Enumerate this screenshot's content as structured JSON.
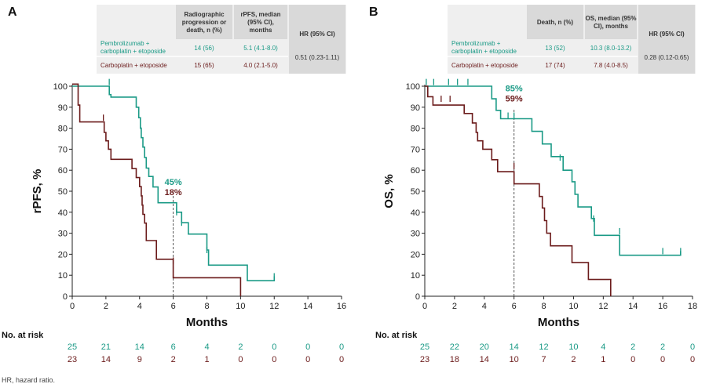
{
  "colors": {
    "pembro": "#1a9a86",
    "carbo": "#6b1b1b",
    "table_bg": "#efefef",
    "table_head_bg": "#d9d9d9",
    "axis": "#222222",
    "ref_line": "#555555"
  },
  "footnote": "HR, hazard ratio.",
  "panels": [
    {
      "letter": "A",
      "table": {
        "headers": [
          "",
          "Radiographic progression or death, n (%)",
          "rPFS, median (95% CI), months",
          "HR (95% CI)"
        ],
        "rows": [
          {
            "label": [
              "Pembrolizumab +",
              "carboplatin + etoposide"
            ],
            "events": "14 (56)",
            "median": "5.1 (4.1-8.0)"
          },
          {
            "label": [
              "Carboplatin + etoposide"
            ],
            "events": "15 (65)",
            "median": "4.0 (2.1-5.0)"
          }
        ],
        "hr": "0.51 (0.23-1.11)"
      },
      "chart_data": {
        "type": "line",
        "title": "",
        "xlabel": "Months",
        "ylabel": "rPFS, %",
        "xlim": [
          0,
          16
        ],
        "ylim": [
          0,
          100
        ],
        "xticks": [
          0,
          2,
          4,
          6,
          8,
          10,
          12,
          14,
          16
        ],
        "yticks": [
          0,
          10,
          20,
          30,
          40,
          50,
          60,
          70,
          80,
          90,
          100
        ],
        "ref_x": 6,
        "landmark_labels": [
          {
            "text": "45%",
            "series": "pembro"
          },
          {
            "text": "18%",
            "series": "carbo"
          }
        ],
        "series": [
          {
            "name": "Pembrolizumab + carboplatin + etoposide",
            "key": "pembro",
            "steps": [
              [
                0,
                100
              ],
              [
                2.2,
                100
              ],
              [
                2.2,
                96
              ],
              [
                2.3,
                96
              ],
              [
                2.3,
                94.8
              ],
              [
                3.8,
                94.8
              ],
              [
                3.8,
                90
              ],
              [
                3.95,
                90
              ],
              [
                3.95,
                85
              ],
              [
                4.05,
                85
              ],
              [
                4.05,
                80
              ],
              [
                4.1,
                80
              ],
              [
                4.1,
                75.5
              ],
              [
                4.2,
                75.5
              ],
              [
                4.2,
                71
              ],
              [
                4.3,
                71
              ],
              [
                4.3,
                66
              ],
              [
                4.4,
                66
              ],
              [
                4.4,
                61
              ],
              [
                4.55,
                61
              ],
              [
                4.55,
                57
              ],
              [
                4.8,
                57
              ],
              [
                4.8,
                52
              ],
              [
                5.1,
                52
              ],
              [
                5.1,
                44.5
              ],
              [
                6.2,
                44.5
              ],
              [
                6.2,
                40
              ],
              [
                6.5,
                40
              ],
              [
                6.5,
                35
              ],
              [
                6.9,
                35
              ],
              [
                6.9,
                29.6
              ],
              [
                8,
                29.6
              ],
              [
                8,
                22
              ],
              [
                8.1,
                22
              ],
              [
                8.1,
                14.8
              ],
              [
                10.4,
                14.8
              ],
              [
                10.4,
                7.4
              ],
              [
                12,
                7.4
              ],
              [
                12,
                9.5
              ]
            ],
            "censors": [
              [
                2.2,
                102
              ],
              [
                6.2,
                40
              ],
              [
                6.5,
                35
              ],
              [
                8.0,
                22
              ],
              [
                12,
                9.5
              ]
            ]
          },
          {
            "name": "Carboplatin + etoposide",
            "key": "carbo",
            "steps": [
              [
                0,
                101
              ],
              [
                0.35,
                101
              ],
              [
                0.35,
                91
              ],
              [
                0.45,
                91
              ],
              [
                0.45,
                83
              ],
              [
                1.9,
                83
              ],
              [
                1.9,
                78
              ],
              [
                2.0,
                78
              ],
              [
                2.0,
                74
              ],
              [
                2.15,
                74
              ],
              [
                2.15,
                70
              ],
              [
                2.3,
                70
              ],
              [
                2.3,
                65.2
              ],
              [
                3.55,
                65.2
              ],
              [
                3.55,
                60.8
              ],
              [
                3.8,
                60.8
              ],
              [
                3.8,
                56.5
              ],
              [
                4.0,
                56.5
              ],
              [
                4.0,
                52.2
              ],
              [
                4.1,
                52.2
              ],
              [
                4.1,
                47.8
              ],
              [
                4.15,
                47.8
              ],
              [
                4.15,
                43.4
              ],
              [
                4.2,
                43.4
              ],
              [
                4.2,
                39
              ],
              [
                4.3,
                39
              ],
              [
                4.3,
                34.8
              ],
              [
                4.4,
                34.8
              ],
              [
                4.4,
                26.5
              ],
              [
                5.0,
                26.5
              ],
              [
                5.0,
                17.6
              ],
              [
                6.0,
                17.6
              ],
              [
                6.0,
                8.8
              ],
              [
                10.0,
                8.8
              ],
              [
                10.0,
                0
              ]
            ],
            "censors": [
              [
                1.85,
                85
              ],
              [
                6.0,
                17
              ]
            ]
          }
        ],
        "at_risk_title": "No. at risk",
        "at_risk_times": [
          0,
          2,
          4,
          6,
          8,
          10,
          12,
          14,
          16
        ],
        "at_risk": {
          "pembro": [
            "25",
            "21",
            "14",
            "6",
            "4",
            "2",
            "0",
            "0",
            "0"
          ],
          "carbo": [
            "23",
            "14",
            "9",
            "2",
            "1",
            "0",
            "0",
            "0",
            "0"
          ]
        }
      }
    },
    {
      "letter": "B",
      "table": {
        "headers": [
          "",
          "Death, n (%)",
          "OS, median (95% CI), months",
          "HR (95% CI)"
        ],
        "rows": [
          {
            "label": [
              "Pembrolizumab +",
              "carboplatin + etoposide"
            ],
            "events": "13 (52)",
            "median": "10.3 (8.0-13.2)"
          },
          {
            "label": [
              "Carboplatin + etoposide"
            ],
            "events": "17 (74)",
            "median": "7.8 (4.0-8.5)"
          }
        ],
        "hr": "0.28 (0.12-0.65)"
      },
      "chart_data": {
        "type": "line",
        "title": "",
        "xlabel": "Months",
        "ylabel": "OS, %",
        "xlim": [
          0,
          18
        ],
        "ylim": [
          0,
          100
        ],
        "xticks": [
          0,
          2,
          4,
          6,
          8,
          10,
          12,
          14,
          16,
          18
        ],
        "yticks": [
          0,
          10,
          20,
          30,
          40,
          50,
          60,
          70,
          80,
          90,
          100
        ],
        "ref_x": 6,
        "landmark_labels": [
          {
            "text": "85%",
            "series": "pembro"
          },
          {
            "text": "59%",
            "series": "carbo"
          }
        ],
        "series": [
          {
            "name": "Pembrolizumab + carboplatin + etoposide",
            "key": "pembro",
            "steps": [
              [
                0,
                100
              ],
              [
                4.5,
                100
              ],
              [
                4.5,
                94
              ],
              [
                4.8,
                94
              ],
              [
                4.8,
                88.5
              ],
              [
                5.1,
                88.5
              ],
              [
                5.1,
                84.5
              ],
              [
                7.2,
                84.5
              ],
              [
                7.2,
                78.5
              ],
              [
                7.9,
                78.5
              ],
              [
                7.9,
                72.5
              ],
              [
                8.5,
                72.5
              ],
              [
                8.5,
                66.5
              ],
              [
                9.3,
                66.5
              ],
              [
                9.3,
                60
              ],
              [
                9.9,
                60
              ],
              [
                9.9,
                54.5
              ],
              [
                10.1,
                54.5
              ],
              [
                10.1,
                48.5
              ],
              [
                10.3,
                48.5
              ],
              [
                10.3,
                42.5
              ],
              [
                11.2,
                42.5
              ],
              [
                11.2,
                37
              ],
              [
                11.4,
                37
              ],
              [
                11.4,
                29
              ],
              [
                13.1,
                29
              ],
              [
                13.1,
                19.5
              ],
              [
                17.2,
                19.5
              ],
              [
                17.2,
                21.5
              ]
            ],
            "censors": [
              [
                0.1,
                102
              ],
              [
                0.6,
                102
              ],
              [
                1.6,
                102
              ],
              [
                2.2,
                102
              ],
              [
                2.9,
                102
              ],
              [
                5.6,
                86
              ],
              [
                6.0,
                86
              ],
              [
                9.1,
                66
              ],
              [
                11.35,
                37
              ],
              [
                13.1,
                31
              ],
              [
                16.0,
                21.5
              ],
              [
                17.2,
                21.5
              ]
            ]
          },
          {
            "name": "Carboplatin + etoposide",
            "key": "carbo",
            "steps": [
              [
                0,
                100
              ],
              [
                0.2,
                100
              ],
              [
                0.2,
                95
              ],
              [
                0.55,
                95
              ],
              [
                0.55,
                91
              ],
              [
                2.65,
                91
              ],
              [
                2.65,
                87
              ],
              [
                3.2,
                87
              ],
              [
                3.2,
                82.5
              ],
              [
                3.45,
                82.5
              ],
              [
                3.45,
                78
              ],
              [
                3.55,
                78
              ],
              [
                3.55,
                74
              ],
              [
                3.9,
                74
              ],
              [
                3.9,
                70
              ],
              [
                4.5,
                70
              ],
              [
                4.5,
                65
              ],
              [
                4.9,
                65
              ],
              [
                4.9,
                59.3
              ],
              [
                6.0,
                59.3
              ],
              [
                6.0,
                53.5
              ],
              [
                7.7,
                53.5
              ],
              [
                7.7,
                47.5
              ],
              [
                7.9,
                47.5
              ],
              [
                7.9,
                42
              ],
              [
                8.05,
                42
              ],
              [
                8.05,
                36
              ],
              [
                8.2,
                36
              ],
              [
                8.2,
                30
              ],
              [
                8.45,
                30
              ],
              [
                8.45,
                24
              ],
              [
                9.9,
                24
              ],
              [
                9.9,
                16
              ],
              [
                11.0,
                16
              ],
              [
                11.0,
                8
              ],
              [
                12.5,
                8
              ],
              [
                12.5,
                0
              ]
            ],
            "censors": [
              [
                1.1,
                94
              ],
              [
                1.7,
                94
              ],
              [
                6.0,
                62
              ]
            ]
          }
        ],
        "at_risk_title": "No. at risk",
        "at_risk_times": [
          0,
          2,
          4,
          6,
          8,
          10,
          12,
          14,
          16,
          18
        ],
        "at_risk": {
          "pembro": [
            "25",
            "22",
            "20",
            "14",
            "12",
            "10",
            "4",
            "2",
            "2",
            "0"
          ],
          "carbo": [
            "23",
            "18",
            "14",
            "10",
            "7",
            "2",
            "1",
            "0",
            "0",
            "0"
          ]
        }
      }
    }
  ]
}
